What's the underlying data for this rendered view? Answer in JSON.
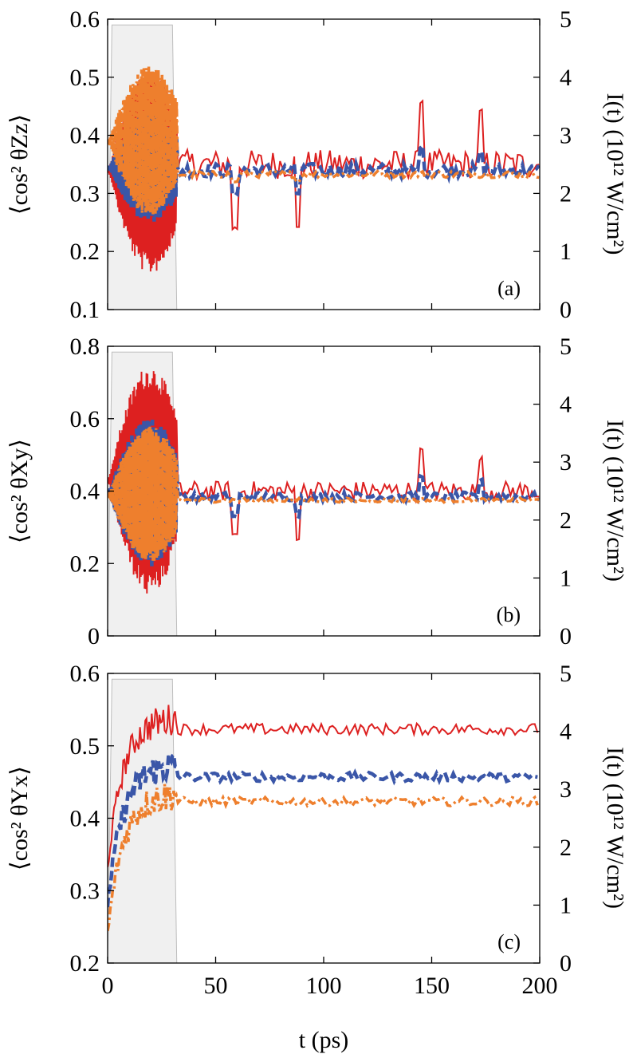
{
  "colors": {
    "series_red": "#dd2020",
    "series_blue": "#3a56a8",
    "series_orange": "#ee7f2d",
    "pulse_fill": "#f0f0f0",
    "pulse_edge": "#bdbdbd"
  },
  "shared_xlabel": "t (ps)",
  "chart_data": [
    {
      "type": "line",
      "panel": "(a)",
      "ylabel_left": "⟨cos² θZz⟩",
      "ylabel_right": "I(t) (10¹² W/cm²)",
      "xlim": [
        0,
        200
      ],
      "ylim_left": [
        0.1,
        0.6
      ],
      "ylim_right": [
        0,
        5
      ],
      "x_ticks": [
        "0",
        "50",
        "100",
        "150",
        "200"
      ],
      "y_ticks_left": [
        "0.1",
        "0.2",
        "0.3",
        "0.4",
        "0.5",
        "0.6"
      ],
      "y_ticks_right": [
        "0",
        "1",
        "2",
        "3",
        "4",
        "5"
      ],
      "grid": false,
      "pulse": {
        "x": [
          0,
          2,
          30,
          32
        ],
        "intensity": [
          0,
          4.9,
          4.9,
          0
        ]
      },
      "series": [
        {
          "color_key": "series_red",
          "style": "solid",
          "pulse_range": [
            0.16,
            0.52
          ],
          "post_mean": 0.35,
          "post_noise": 0.025,
          "spikes": [
            [
              59,
              0.24
            ],
            [
              88,
              0.24
            ],
            [
              145,
              0.46
            ],
            [
              173,
              0.44
            ]
          ]
        },
        {
          "color_key": "series_blue",
          "style": "dashed",
          "pulse_range": [
            0.25,
            0.44
          ],
          "post_mean": 0.34,
          "post_noise": 0.012,
          "spikes": [
            [
              59,
              0.3
            ],
            [
              88,
              0.3
            ],
            [
              145,
              0.38
            ],
            [
              173,
              0.37
            ]
          ]
        },
        {
          "color_key": "series_orange",
          "style": "dashdot",
          "pulse_range": [
            0.26,
            0.52
          ],
          "post_mean": 0.333,
          "post_noise": 0.006,
          "spikes": [
            [
              59,
              0.32
            ],
            [
              88,
              0.32
            ]
          ]
        }
      ]
    },
    {
      "type": "line",
      "panel": "(b)",
      "ylabel_left": "⟨cos² θXy⟩",
      "ylabel_right": "I(t) (10¹² W/cm²)",
      "xlim": [
        0,
        200
      ],
      "ylim_left": [
        0,
        0.8
      ],
      "ylim_right": [
        0,
        5
      ],
      "x_ticks": [
        "0",
        "50",
        "100",
        "150",
        "200"
      ],
      "y_ticks_left": [
        "0",
        "0.2",
        "0.4",
        "0.6",
        "0.8"
      ],
      "y_ticks_right": [
        "0",
        "1",
        "2",
        "3",
        "4",
        "5"
      ],
      "grid": false,
      "pulse": {
        "x": [
          0,
          2,
          30,
          32
        ],
        "intensity": [
          0,
          4.9,
          4.9,
          0
        ]
      },
      "series": [
        {
          "color_key": "series_red",
          "style": "solid",
          "pulse_range": [
            0.11,
            0.75
          ],
          "post_mean": 0.4,
          "post_noise": 0.028,
          "spikes": [
            [
              59,
              0.28
            ],
            [
              88,
              0.27
            ],
            [
              145,
              0.52
            ],
            [
              173,
              0.49
            ]
          ]
        },
        {
          "color_key": "series_blue",
          "style": "dashed",
          "pulse_range": [
            0.19,
            0.6
          ],
          "post_mean": 0.385,
          "post_noise": 0.012,
          "spikes": [
            [
              59,
              0.33
            ],
            [
              88,
              0.33
            ],
            [
              145,
              0.44
            ],
            [
              173,
              0.43
            ]
          ]
        },
        {
          "color_key": "series_orange",
          "style": "dashdot",
          "pulse_range": [
            0.2,
            0.58
          ],
          "post_mean": 0.375,
          "post_noise": 0.006,
          "spikes": []
        }
      ]
    },
    {
      "type": "line",
      "panel": "(c)",
      "ylabel_left": "⟨cos² θYx⟩",
      "ylabel_right": "I(t) (10¹² W/cm²)",
      "xlim": [
        0,
        200
      ],
      "ylim_left": [
        0.2,
        0.6
      ],
      "ylim_right": [
        0,
        5
      ],
      "x_ticks": [
        "0",
        "50",
        "100",
        "150",
        "200"
      ],
      "y_ticks_left": [
        "0.2",
        "0.3",
        "0.4",
        "0.5",
        "0.6"
      ],
      "y_ticks_right": [
        "0",
        "1",
        "2",
        "3",
        "4",
        "5"
      ],
      "grid": false,
      "pulse": {
        "x": [
          0,
          2,
          30,
          32
        ],
        "intensity": [
          0,
          4.9,
          4.9,
          0
        ]
      },
      "series": [
        {
          "color_key": "series_red",
          "style": "solid",
          "start": 0.33,
          "plateau": 0.54,
          "post_mean": 0.523,
          "post_noise": 0.008
        },
        {
          "color_key": "series_blue",
          "style": "dashed",
          "start": 0.28,
          "plateau": 0.475,
          "post_mean": 0.457,
          "post_noise": 0.006
        },
        {
          "color_key": "series_orange",
          "style": "dashdot",
          "start": 0.24,
          "plateau": 0.435,
          "post_mean": 0.423,
          "post_noise": 0.006
        }
      ]
    }
  ]
}
